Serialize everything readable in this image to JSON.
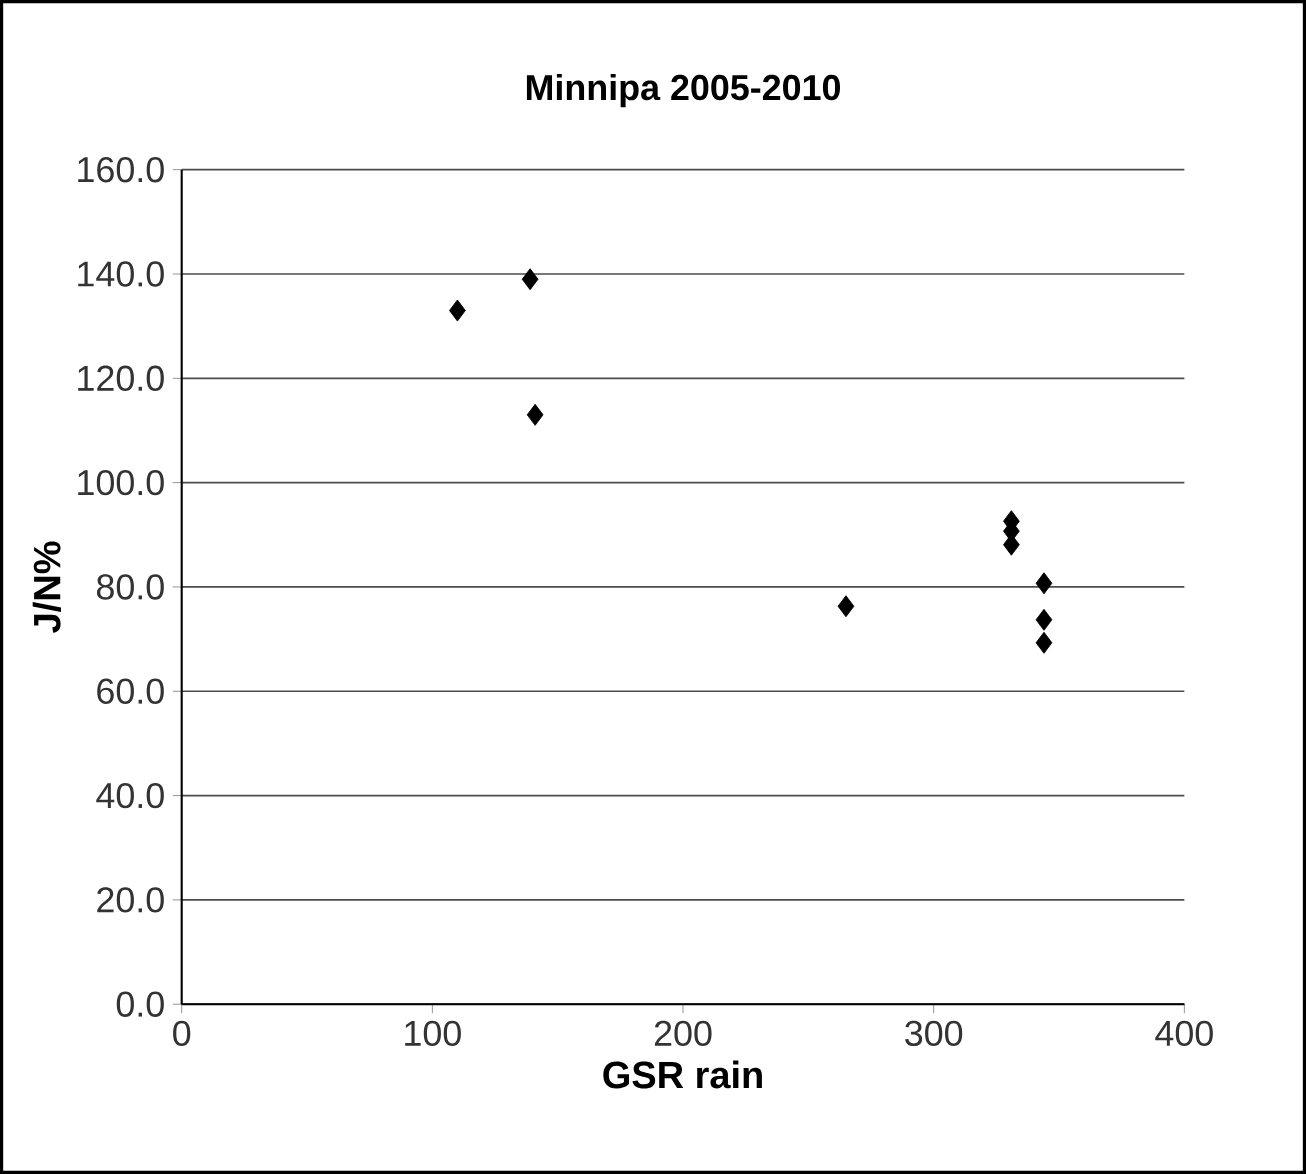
{
  "chart_data": {
    "type": "scatter",
    "title": "Minnipa 2005-2010",
    "xlabel": "GSR rain",
    "ylabel": "J/N%",
    "marker": "diamond",
    "grid": "y",
    "x": [
      110,
      139,
      141,
      265,
      331,
      331,
      331,
      344,
      344,
      344
    ],
    "values": [
      133,
      139,
      113,
      76.3,
      92.6,
      90.7,
      88.1,
      80.7,
      73.7,
      69.3
    ],
    "color": "#000000",
    "xlim": [
      0,
      400
    ],
    "xticks": [
      0,
      100,
      200,
      300,
      400
    ],
    "ylim": [
      0,
      160
    ],
    "yticks": [
      {
        "value": 0,
        "label": "0.0"
      },
      {
        "value": 20,
        "label": "20.0"
      },
      {
        "value": 40,
        "label": "40.0"
      },
      {
        "value": 60,
        "label": "60.0"
      },
      {
        "value": 80,
        "label": "80.0"
      },
      {
        "value": 100,
        "label": "100.0"
      },
      {
        "value": 120,
        "label": "120.0"
      },
      {
        "value": 140,
        "label": "140.0"
      },
      {
        "value": 160,
        "label": "160.0"
      }
    ]
  }
}
